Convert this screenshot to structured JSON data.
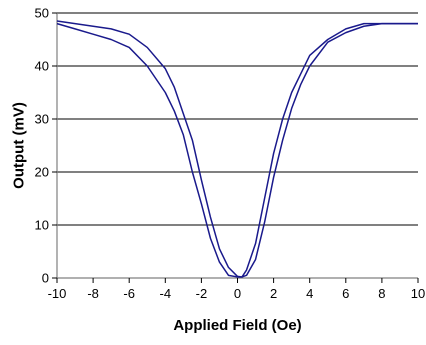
{
  "chart_data": {
    "type": "line",
    "title": "",
    "xlabel": "Applied Field (Oe)",
    "ylabel": "Output (mV)",
    "xlim": [
      -10,
      10
    ],
    "ylim": [
      0,
      50
    ],
    "x_ticks": [
      -10,
      -8,
      -6,
      -4,
      -2,
      0,
      2,
      4,
      6,
      8,
      10
    ],
    "y_ticks": [
      0,
      10,
      20,
      30,
      40,
      50
    ],
    "x_tick_labels": [
      "-10",
      "-8",
      "-6",
      "-4",
      "-2",
      "0",
      "2",
      "4",
      "6",
      "8",
      "10"
    ],
    "y_tick_labels": [
      "0",
      "10",
      "20",
      "30",
      "40",
      "50"
    ],
    "grid": "horizontal",
    "legend": "none",
    "line_color": "#1a1a8c",
    "series": [
      {
        "x": [
          -10,
          -9,
          -8,
          -7,
          -6,
          -5,
          -4,
          -3.5,
          -3,
          -2.5,
          -2,
          -1.5,
          -1,
          -0.5,
          0,
          0.25,
          0.5,
          1,
          1.5,
          2,
          2.5,
          3,
          3.5,
          4,
          5,
          6,
          7,
          8,
          9,
          10
        ],
        "values": [
          48.5,
          48,
          47.5,
          47,
          46,
          43.5,
          39.5,
          36,
          31,
          26,
          18.5,
          11.5,
          5.5,
          2,
          0.3,
          0.2,
          0.5,
          3.5,
          10.5,
          19,
          26,
          32,
          36.5,
          40,
          44.5,
          46.3,
          47.5,
          48,
          48,
          48
        ]
      },
      {
        "x": [
          -10,
          -9,
          -8,
          -7,
          -6,
          -5,
          -4,
          -3.5,
          -3,
          -2.5,
          -2,
          -1.5,
          -1,
          -0.5,
          0,
          0.25,
          0.5,
          1,
          1.5,
          2,
          2.5,
          3,
          3.5,
          4,
          5,
          6,
          7,
          8,
          9,
          10
        ],
        "values": [
          48,
          47,
          46,
          45,
          43.5,
          40,
          35,
          31.5,
          27,
          20,
          14,
          7.5,
          3,
          0.5,
          0.2,
          0.2,
          1.5,
          6.5,
          15,
          23.5,
          30,
          35,
          38.5,
          42,
          45,
          47,
          48,
          48,
          48,
          48
        ]
      }
    ]
  }
}
